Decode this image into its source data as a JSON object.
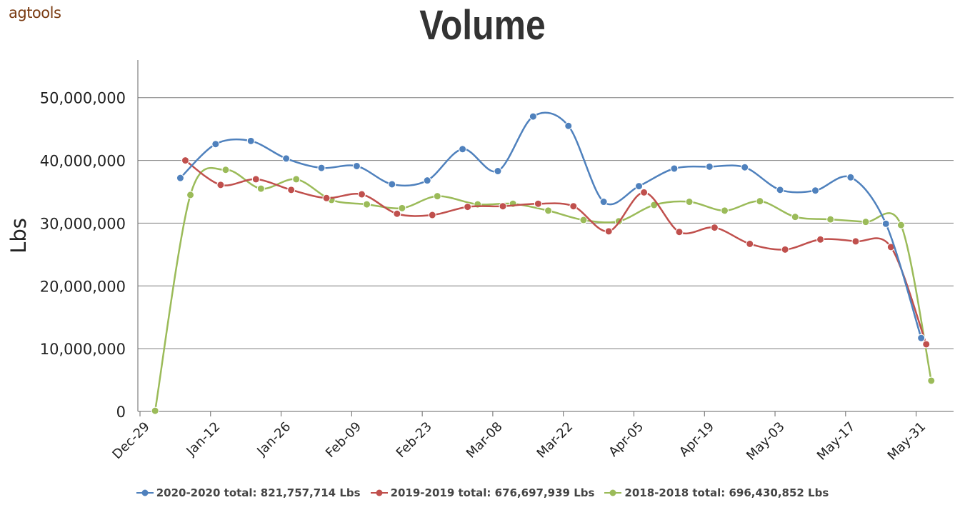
{
  "logo": {
    "text": "agtools"
  },
  "chart_data": {
    "type": "line",
    "title": "Volume",
    "ylabel": "Lbs",
    "xlabel": "",
    "ylim": [
      0,
      56000000
    ],
    "yticks": [
      0,
      10000000,
      20000000,
      30000000,
      40000000,
      50000000
    ],
    "ytick_labels": [
      "0",
      "10,000,000",
      "20,000,000",
      "30,000,000",
      "40,000,000",
      "50,000,000"
    ],
    "xlim": [
      "2019-12-29",
      "2020-06-07"
    ],
    "xticks": [
      "2019-12-29",
      "2020-01-12",
      "2020-01-26",
      "2020-02-09",
      "2020-02-23",
      "2020-03-08",
      "2020-03-22",
      "2020-04-05",
      "2020-04-19",
      "2020-05-03",
      "2020-05-17",
      "2020-05-31"
    ],
    "xtick_labels": [
      "Dec-29",
      "Jan-12",
      "Jan-26",
      "Feb-09",
      "Feb-23",
      "Mar-08",
      "Mar-22",
      "Apr-05",
      "Apr-19",
      "May-03",
      "May-17",
      "May-31"
    ],
    "grid": true,
    "legend": "bottom",
    "series": [
      {
        "name": "2020-2020",
        "legend_label": "2020-2020 total: 821,757,714 Lbs",
        "color": "#4f81bd",
        "x": [
          "2020-01-06",
          "2020-01-13",
          "2020-01-20",
          "2020-01-27",
          "2020-02-03",
          "2020-02-10",
          "2020-02-17",
          "2020-02-24",
          "2020-03-02",
          "2020-03-09",
          "2020-03-16",
          "2020-03-23",
          "2020-03-30",
          "2020-04-06",
          "2020-04-13",
          "2020-04-20",
          "2020-04-27",
          "2020-05-04",
          "2020-05-11",
          "2020-05-18",
          "2020-05-25",
          "2020-06-01"
        ],
        "values": [
          37200000,
          42600000,
          43100000,
          40300000,
          38800000,
          39100000,
          36200000,
          36800000,
          41800000,
          38300000,
          47000000,
          45500000,
          33400000,
          35900000,
          38700000,
          39000000,
          38900000,
          35300000,
          35200000,
          37300000,
          29900000,
          11700000
        ]
      },
      {
        "name": "2019-2019",
        "legend_label": "2019-2019 total: 676,697,939 Lbs",
        "color": "#c0504d",
        "x": [
          "2020-01-07",
          "2020-01-14",
          "2020-01-21",
          "2020-01-28",
          "2020-02-04",
          "2020-02-11",
          "2020-02-18",
          "2020-02-25",
          "2020-03-03",
          "2020-03-10",
          "2020-03-17",
          "2020-03-24",
          "2020-03-31",
          "2020-04-07",
          "2020-04-14",
          "2020-04-21",
          "2020-04-28",
          "2020-05-05",
          "2020-05-12",
          "2020-05-19",
          "2020-05-26",
          "2020-06-02"
        ],
        "values": [
          40000000,
          36100000,
          37000000,
          35300000,
          34000000,
          34600000,
          31500000,
          31300000,
          32600000,
          32700000,
          33100000,
          32700000,
          28700000,
          34900000,
          28600000,
          29300000,
          26700000,
          25800000,
          27400000,
          27100000,
          26200000,
          10700000
        ]
      },
      {
        "name": "2018-2018",
        "legend_label": "2018-2018 total: 696,430,852 Lbs",
        "color": "#9bbb59",
        "x": [
          "2020-01-01",
          "2020-01-08",
          "2020-01-15",
          "2020-01-22",
          "2020-01-29",
          "2020-02-05",
          "2020-02-12",
          "2020-02-19",
          "2020-02-26",
          "2020-03-05",
          "2020-03-12",
          "2020-03-19",
          "2020-03-26",
          "2020-04-02",
          "2020-04-09",
          "2020-04-16",
          "2020-04-23",
          "2020-04-30",
          "2020-05-07",
          "2020-05-14",
          "2020-05-21",
          "2020-05-28",
          "2020-06-03"
        ],
        "values": [
          100000,
          34500000,
          38500000,
          35500000,
          37000000,
          33700000,
          33000000,
          32400000,
          34300000,
          33000000,
          33100000,
          32000000,
          30500000,
          30300000,
          32900000,
          33400000,
          32000000,
          33500000,
          31000000,
          30600000,
          30200000,
          29700000,
          4900000
        ]
      }
    ]
  }
}
